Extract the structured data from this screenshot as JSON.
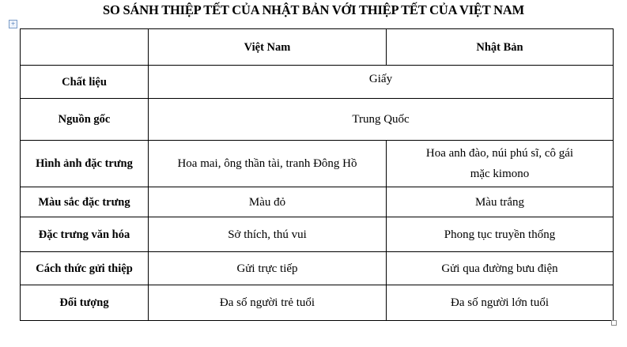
{
  "title": "SO SÁNH THIỆP TẾT CỦA NHẬT BẢN VỚI THIỆP TẾT CỦA VIỆT NAM",
  "table_move_icon": "move-handle-icon",
  "table": {
    "headers": [
      "",
      "Việt Nam",
      "Nhật Bản"
    ],
    "rows": [
      {
        "label": "Chất liệu",
        "merged": "Giấy"
      },
      {
        "label": "Nguồn gốc",
        "merged": "Trung Quốc"
      },
      {
        "label": "Hình ảnh đặc trưng",
        "vn": "Hoa mai, ông thần tài, tranh Đông Hồ",
        "jp": "Hoa anh đào, núi phú sĩ, cô gái mặc kimono"
      },
      {
        "label": "Màu sắc đặc trưng",
        "vn": "Màu đỏ",
        "jp": "Màu trắng"
      },
      {
        "label": "Đặc trưng văn hóa",
        "vn": "Sở thích, thú vui",
        "jp": "Phong tục truyền thống"
      },
      {
        "label": "Cách thức gửi thiệp",
        "vn": "Gửi trực tiếp",
        "jp": "Gửi qua đường bưu điện"
      },
      {
        "label": "Đối tượng",
        "vn": "Đa số người trẻ tuổi",
        "jp": "Đa số người lớn tuổi"
      }
    ]
  }
}
